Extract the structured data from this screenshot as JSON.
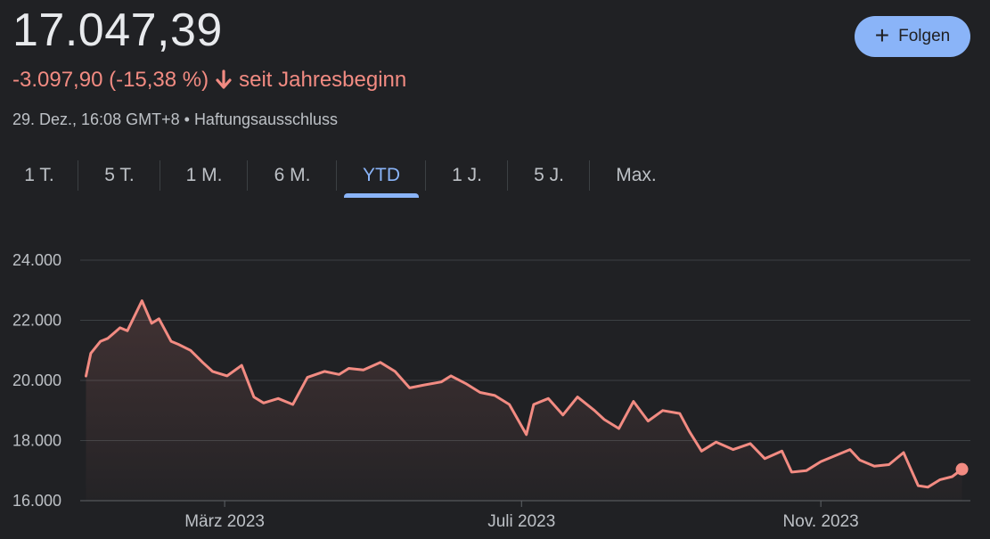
{
  "quote": {
    "price": "17.047,39",
    "change": "-3.097,90 (-15,38 %)",
    "change_period": "seit Jahresbeginn",
    "timestamp": "29. Dez., 16:08 GMT+8",
    "separator": "•",
    "disclaimer": "Haftungsausschluss"
  },
  "follow_button": {
    "label": "Folgen"
  },
  "ranges": [
    "1 T.",
    "5 T.",
    "1 M.",
    "6 M.",
    "YTD",
    "1 J.",
    "5 J.",
    "Max."
  ],
  "active_range": "YTD",
  "colors": {
    "line": "#f28b82",
    "accent": "#8ab4f8",
    "background": "#202124",
    "grid": "#3c4043"
  },
  "chart_data": {
    "type": "area",
    "ylim": [
      16000,
      24000
    ],
    "yticks": [
      "24.000",
      "22.000",
      "20.000",
      "18.000",
      "16.000"
    ],
    "xticks": [
      "März 2023",
      "Juli 2023",
      "Nov. 2023"
    ],
    "grid": "horizontal",
    "xlabel": "",
    "ylabel": "",
    "series": [
      {
        "x": [
          "2023-01-03",
          "2023-01-05",
          "2023-01-09",
          "2023-01-12",
          "2023-01-17",
          "2023-01-20",
          "2023-01-26",
          "2023-01-30",
          "2023-02-02",
          "2023-02-07",
          "2023-02-10",
          "2023-02-15",
          "2023-02-20",
          "2023-02-24",
          "2023-03-02",
          "2023-03-08",
          "2023-03-13",
          "2023-03-17",
          "2023-03-23",
          "2023-03-29",
          "2023-04-04",
          "2023-04-11",
          "2023-04-17",
          "2023-04-21",
          "2023-04-27",
          "2023-05-04",
          "2023-05-10",
          "2023-05-16",
          "2023-05-22",
          "2023-05-29",
          "2023-06-02",
          "2023-06-08",
          "2023-06-14",
          "2023-06-20",
          "2023-06-26",
          "2023-07-03",
          "2023-07-06",
          "2023-07-12",
          "2023-07-18",
          "2023-07-24",
          "2023-07-31",
          "2023-08-04",
          "2023-08-10",
          "2023-08-16",
          "2023-08-22",
          "2023-08-28",
          "2023-09-04",
          "2023-09-08",
          "2023-09-13",
          "2023-09-19",
          "2023-09-26",
          "2023-10-03",
          "2023-10-09",
          "2023-10-16",
          "2023-10-20",
          "2023-10-26",
          "2023-11-01",
          "2023-11-07",
          "2023-11-13",
          "2023-11-17",
          "2023-11-23",
          "2023-11-29",
          "2023-12-05",
          "2023-12-11",
          "2023-12-15",
          "2023-12-20",
          "2023-12-25",
          "2023-12-29"
        ],
        "y": [
          20145,
          20900,
          21300,
          21400,
          21750,
          21650,
          22650,
          21900,
          22050,
          21300,
          21200,
          21000,
          20600,
          20300,
          20150,
          20500,
          19450,
          19250,
          19400,
          19200,
          20100,
          20300,
          20200,
          20400,
          20350,
          20600,
          20300,
          19750,
          19850,
          19950,
          20150,
          19900,
          19600,
          19500,
          19200,
          18200,
          19200,
          19400,
          18850,
          19450,
          19000,
          18700,
          18400,
          19300,
          18650,
          19000,
          18900,
          18300,
          17650,
          17950,
          17700,
          17900,
          17400,
          17650,
          16950,
          17000,
          17300,
          17500,
          17700,
          17350,
          17150,
          17200,
          17600,
          16500,
          16450,
          16700,
          16800,
          17047.39
        ]
      }
    ]
  }
}
